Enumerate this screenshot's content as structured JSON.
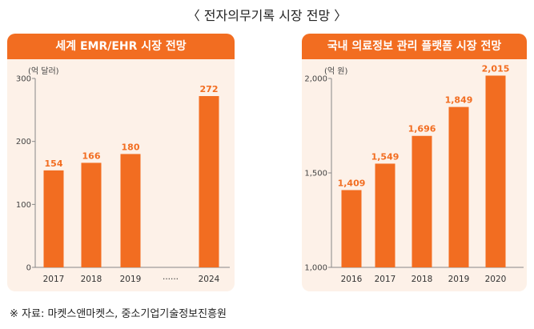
{
  "page": {
    "title": "〈 전자의무기록 시장 전망 〉",
    "source": "※ 자료: 마켓스앤마켓스, 중소기업기술정보진흥원"
  },
  "colors": {
    "bar": "#f26d21",
    "panel_bg": "#fdf1e8",
    "header": "#f26d21"
  },
  "chart_data": [
    {
      "type": "bar",
      "title": "세계 EMR/EHR 시장 전망",
      "unit_label": "(억 달러)",
      "categories": [
        "2017",
        "2018",
        "2019",
        "······",
        "2024"
      ],
      "values": [
        154,
        166,
        180,
        null,
        272
      ],
      "value_labels": [
        "154",
        "166",
        "180",
        "",
        "272"
      ],
      "ylim": [
        0,
        300
      ],
      "yticks": [
        0,
        100,
        200,
        300
      ],
      "ytick_labels": [
        "0",
        "100",
        "200",
        "300"
      ],
      "grid": false,
      "legend": "none"
    },
    {
      "type": "bar",
      "title": "국내 의료정보 관리 플랫폼 시장 전망",
      "unit_label": "(억 원)",
      "categories": [
        "2016",
        "2017",
        "2018",
        "2019",
        "2020"
      ],
      "values": [
        1409,
        1549,
        1696,
        1849,
        2015
      ],
      "value_labels": [
        "1,409",
        "1,549",
        "1,696",
        "1,849",
        "2,015"
      ],
      "ylim": [
        1000,
        2000
      ],
      "yticks": [
        1000,
        1500,
        2000
      ],
      "ytick_labels": [
        "1,000",
        "1,500",
        "2,000"
      ],
      "grid": false,
      "legend": "none"
    }
  ]
}
